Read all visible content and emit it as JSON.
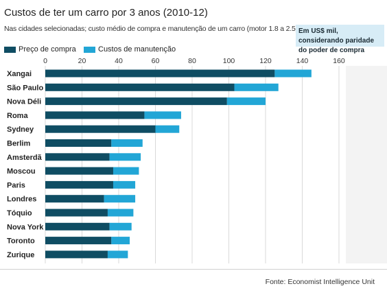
{
  "chart_data": {
    "type": "bar",
    "orientation": "horizontal",
    "stacked": true,
    "title": "Custos de ter um carro por 3 anos (2010-12)",
    "subtitle": "Nas cidades selecionadas; custo médio de compra e manutenção de um carro (motor 1.8 a 2.5)",
    "unit_note": "Em US$ mil, considerando paridade do poder de compra",
    "categories": [
      "Xangai",
      "São Paulo",
      "Nova Déli",
      "Roma",
      "Sydney",
      "Berlim",
      "Amsterdã",
      "Moscou",
      "Paris",
      "Londres",
      "Tóquio",
      "Nova York",
      "Toronto",
      "Zurique"
    ],
    "series": [
      {
        "name": "Preço de compra",
        "color": "#0f4d63",
        "values": [
          125,
          103,
          99,
          54,
          60,
          36,
          35,
          37,
          37,
          32,
          34,
          35,
          36,
          34
        ]
      },
      {
        "name": "Custos de manutenção",
        "color": "#22a6d6",
        "values": [
          20,
          24,
          21,
          20,
          13,
          17,
          17,
          14,
          12,
          17,
          14,
          12,
          10,
          11
        ]
      }
    ],
    "xlim": [
      0,
      160
    ],
    "xticks": [
      "0",
      "20",
      "40",
      "60",
      "80",
      "100",
      "120",
      "140",
      "160"
    ],
    "grid": true,
    "legend_position": "top-left",
    "source": "Fonte: Economist Intelligence Unit"
  }
}
